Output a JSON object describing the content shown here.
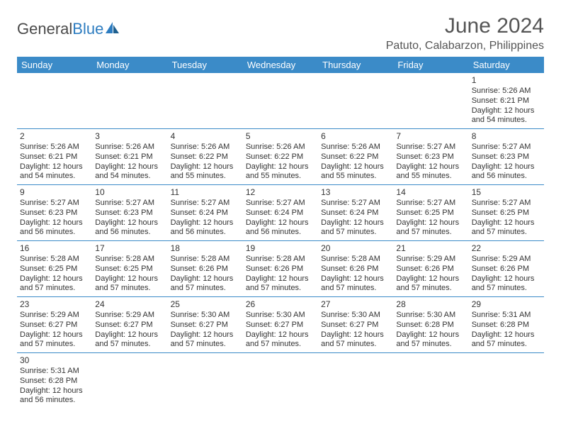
{
  "brand": {
    "part1": "General",
    "part2": "Blue"
  },
  "title": "June 2024",
  "location": "Patuto, Calabarzon, Philippines",
  "colors": {
    "header_bg": "#3b8bc8",
    "header_text": "#ffffff",
    "border": "#3b8bc8",
    "text": "#333333",
    "brand_blue": "#2d7cc0"
  },
  "columns": [
    "Sunday",
    "Monday",
    "Tuesday",
    "Wednesday",
    "Thursday",
    "Friday",
    "Saturday"
  ],
  "weeks": [
    [
      null,
      null,
      null,
      null,
      null,
      null,
      {
        "d": "1",
        "sr": "5:26 AM",
        "ss": "6:21 PM",
        "dl": "12 hours and 54 minutes."
      }
    ],
    [
      {
        "d": "2",
        "sr": "5:26 AM",
        "ss": "6:21 PM",
        "dl": "12 hours and 54 minutes."
      },
      {
        "d": "3",
        "sr": "5:26 AM",
        "ss": "6:21 PM",
        "dl": "12 hours and 54 minutes."
      },
      {
        "d": "4",
        "sr": "5:26 AM",
        "ss": "6:22 PM",
        "dl": "12 hours and 55 minutes."
      },
      {
        "d": "5",
        "sr": "5:26 AM",
        "ss": "6:22 PM",
        "dl": "12 hours and 55 minutes."
      },
      {
        "d": "6",
        "sr": "5:26 AM",
        "ss": "6:22 PM",
        "dl": "12 hours and 55 minutes."
      },
      {
        "d": "7",
        "sr": "5:27 AM",
        "ss": "6:23 PM",
        "dl": "12 hours and 55 minutes."
      },
      {
        "d": "8",
        "sr": "5:27 AM",
        "ss": "6:23 PM",
        "dl": "12 hours and 56 minutes."
      }
    ],
    [
      {
        "d": "9",
        "sr": "5:27 AM",
        "ss": "6:23 PM",
        "dl": "12 hours and 56 minutes."
      },
      {
        "d": "10",
        "sr": "5:27 AM",
        "ss": "6:23 PM",
        "dl": "12 hours and 56 minutes."
      },
      {
        "d": "11",
        "sr": "5:27 AM",
        "ss": "6:24 PM",
        "dl": "12 hours and 56 minutes."
      },
      {
        "d": "12",
        "sr": "5:27 AM",
        "ss": "6:24 PM",
        "dl": "12 hours and 56 minutes."
      },
      {
        "d": "13",
        "sr": "5:27 AM",
        "ss": "6:24 PM",
        "dl": "12 hours and 57 minutes."
      },
      {
        "d": "14",
        "sr": "5:27 AM",
        "ss": "6:25 PM",
        "dl": "12 hours and 57 minutes."
      },
      {
        "d": "15",
        "sr": "5:27 AM",
        "ss": "6:25 PM",
        "dl": "12 hours and 57 minutes."
      }
    ],
    [
      {
        "d": "16",
        "sr": "5:28 AM",
        "ss": "6:25 PM",
        "dl": "12 hours and 57 minutes."
      },
      {
        "d": "17",
        "sr": "5:28 AM",
        "ss": "6:25 PM",
        "dl": "12 hours and 57 minutes."
      },
      {
        "d": "18",
        "sr": "5:28 AM",
        "ss": "6:26 PM",
        "dl": "12 hours and 57 minutes."
      },
      {
        "d": "19",
        "sr": "5:28 AM",
        "ss": "6:26 PM",
        "dl": "12 hours and 57 minutes."
      },
      {
        "d": "20",
        "sr": "5:28 AM",
        "ss": "6:26 PM",
        "dl": "12 hours and 57 minutes."
      },
      {
        "d": "21",
        "sr": "5:29 AM",
        "ss": "6:26 PM",
        "dl": "12 hours and 57 minutes."
      },
      {
        "d": "22",
        "sr": "5:29 AM",
        "ss": "6:26 PM",
        "dl": "12 hours and 57 minutes."
      }
    ],
    [
      {
        "d": "23",
        "sr": "5:29 AM",
        "ss": "6:27 PM",
        "dl": "12 hours and 57 minutes."
      },
      {
        "d": "24",
        "sr": "5:29 AM",
        "ss": "6:27 PM",
        "dl": "12 hours and 57 minutes."
      },
      {
        "d": "25",
        "sr": "5:30 AM",
        "ss": "6:27 PM",
        "dl": "12 hours and 57 minutes."
      },
      {
        "d": "26",
        "sr": "5:30 AM",
        "ss": "6:27 PM",
        "dl": "12 hours and 57 minutes."
      },
      {
        "d": "27",
        "sr": "5:30 AM",
        "ss": "6:27 PM",
        "dl": "12 hours and 57 minutes."
      },
      {
        "d": "28",
        "sr": "5:30 AM",
        "ss": "6:28 PM",
        "dl": "12 hours and 57 minutes."
      },
      {
        "d": "29",
        "sr": "5:31 AM",
        "ss": "6:28 PM",
        "dl": "12 hours and 57 minutes."
      }
    ],
    [
      {
        "d": "30",
        "sr": "5:31 AM",
        "ss": "6:28 PM",
        "dl": "12 hours and 56 minutes."
      },
      null,
      null,
      null,
      null,
      null,
      null
    ]
  ],
  "labels": {
    "sunrise": "Sunrise: ",
    "sunset": "Sunset: ",
    "daylight": "Daylight: "
  }
}
